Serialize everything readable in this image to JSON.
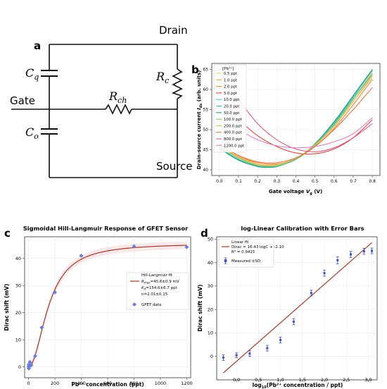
{
  "panel_a": {
    "letter": "a",
    "drain": "Drain",
    "gate": "Gate",
    "source": "Source",
    "cq": {
      "main": "C",
      "sub": "q"
    },
    "co": {
      "main": "C",
      "sub": "o"
    },
    "rc": {
      "main": "R",
      "sub": "c"
    },
    "rch": {
      "main": "R",
      "sub": "ch"
    }
  },
  "panel_b": {
    "letter": "b",
    "ylabel_main": "Drain-source current ",
    "ylabel_sym": "I",
    "ylabel_sub": "ds",
    "ylabel_unit": " (arb. units)",
    "xlabel_main": "Gate voltage ",
    "xlabel_sym": "V",
    "xlabel_sub": "g",
    "xlabel_unit": " (V)",
    "legend_title": "[Pb²⁺]",
    "x_ticks": [
      "0.0",
      "0.1",
      "0.2",
      "0.3",
      "0.4",
      "0.5",
      "0.6",
      "0.7",
      "0.8"
    ],
    "y_ticks": [
      "40",
      "45",
      "50",
      "55",
      "60",
      "65"
    ]
  },
  "panel_c": {
    "letter": "c",
    "title": "Sigmoidal Hill-Langmuir Response of GFET Sensor",
    "ylabel": "Dirac shift (mV)",
    "xlabel": "Pb²⁺ concentration (ppt)",
    "x_ticks": [
      "0",
      "200",
      "400",
      "600",
      "800",
      "1000",
      "1200"
    ],
    "y_ticks": [
      "0",
      "10",
      "20",
      "30",
      "40"
    ],
    "fit_label": "Hill-Langmuir fit",
    "fit_l1": "R",
    "fit_l1_sub": "max",
    "fit_l1_rest": "=45.6±0.9 mV",
    "fit_l2": "K",
    "fit_l2_sub": "d",
    "fit_l2_rest": "=154.6±6.7 ppt",
    "fit_l3": "n=2.01±0.15",
    "data_label": "GFET data"
  },
  "panel_d": {
    "letter": "d",
    "title": "log-Linear Calibration with Error Bars",
    "ylabel": "Dirac shift (mV)",
    "xlabel_pre": "log",
    "xlabel_sub": "10",
    "xlabel_post": "(Pb²⁺ concentration / ppt)",
    "x_ticks": [
      "0.0",
      "0.5",
      "1.0",
      "1.5",
      "2.0",
      "2.5",
      "3.0"
    ],
    "y_ticks": [
      "0",
      "10",
      "20",
      "30",
      "40",
      "50"
    ],
    "legend_fit": "Linear fit",
    "legend_eq": "Dirac = 16.43 logC + -2.10",
    "legend_r2": "R² = 0.9415",
    "legend_meas": "Measured ±SD"
  },
  "chart_data": [
    {
      "panel": "b",
      "type": "line",
      "xlabel": "Gate voltage Vg (V)",
      "ylabel": "Drain-source current Ids (arb. units)",
      "xlim": [
        -0.04,
        0.84
      ],
      "ylim": [
        38.6,
        66.5
      ],
      "legend_title": "[Pb²⁺]",
      "legend_placement": "top-left",
      "series": [
        {
          "name": "0.5 ppt",
          "color": "#f5c96b",
          "x": [
            0.0,
            0.1,
            0.2,
            0.25,
            0.3,
            0.4,
            0.5,
            0.6,
            0.7,
            0.8
          ],
          "y": [
            46.0,
            43.0,
            41.3,
            41.0,
            41.2,
            42.6,
            46.0,
            51.0,
            57.5,
            64.5
          ]
        },
        {
          "name": "1.0 ppt",
          "color": "#f0a93e",
          "x": [
            0.0,
            0.1,
            0.2,
            0.25,
            0.3,
            0.4,
            0.5,
            0.6,
            0.7,
            0.8
          ],
          "y": [
            46.2,
            43.2,
            41.5,
            41.2,
            41.4,
            42.8,
            46.1,
            50.8,
            57.0,
            63.5
          ]
        },
        {
          "name": "2.0 ppt",
          "color": "#e58a3a",
          "x": [
            0.0,
            0.1,
            0.2,
            0.3,
            0.4,
            0.5,
            0.6,
            0.7,
            0.8
          ],
          "y": [
            46.5,
            43.5,
            41.8,
            41.5,
            42.8,
            45.8,
            50.3,
            56.2,
            62.5
          ]
        },
        {
          "name": "5.0 ppt",
          "color": "#cf4a45",
          "x": [
            0.1,
            0.2,
            0.3,
            0.4,
            0.5,
            0.6,
            0.7,
            0.8
          ],
          "y": [
            52.5,
            48.5,
            45.8,
            44.2,
            44.0,
            45.2,
            48.0,
            52.5
          ]
        },
        {
          "name": "10.0 ppt",
          "color": "#48c6d6",
          "x": [
            0.0,
            0.1,
            0.2,
            0.25,
            0.3,
            0.4,
            0.5,
            0.6,
            0.7,
            0.8
          ],
          "y": [
            45.5,
            42.6,
            40.9,
            40.7,
            40.9,
            42.6,
            46.2,
            51.5,
            57.8,
            64.0
          ]
        },
        {
          "name": "20.0 ppt",
          "color": "#37b3b0",
          "x": [
            0.0,
            0.1,
            0.2,
            0.25,
            0.3,
            0.4,
            0.5,
            0.6,
            0.7,
            0.8
          ],
          "y": [
            45.3,
            42.4,
            40.8,
            40.6,
            40.8,
            42.6,
            46.4,
            51.8,
            58.2,
            64.8
          ]
        },
        {
          "name": "50.0 ppt",
          "color": "#2aa07e",
          "x": [
            0.0,
            0.1,
            0.2,
            0.25,
            0.3,
            0.4,
            0.5,
            0.6,
            0.7,
            0.8
          ],
          "y": [
            45.4,
            42.5,
            40.9,
            40.7,
            40.9,
            42.7,
            46.5,
            52.0,
            58.5,
            65.0
          ]
        },
        {
          "name": "100.0 ppt",
          "color": "#8cc06a",
          "x": [
            0.0,
            0.1,
            0.2,
            0.25,
            0.3,
            0.4,
            0.5,
            0.6,
            0.7,
            0.8
          ],
          "y": [
            45.8,
            42.9,
            41.1,
            40.9,
            41.0,
            42.6,
            46.1,
            51.2,
            57.6,
            63.8
          ]
        },
        {
          "name": "200.0 ppt",
          "color": "#c9c86a",
          "x": [
            0.0,
            0.1,
            0.2,
            0.25,
            0.3,
            0.4,
            0.5,
            0.6,
            0.7,
            0.8
          ],
          "y": [
            46.0,
            43.1,
            41.4,
            41.1,
            41.3,
            42.9,
            46.3,
            51.0,
            57.0,
            63.0
          ]
        },
        {
          "name": "400.0 ppt",
          "color": "#e1774a",
          "x": [
            0.0,
            0.1,
            0.2,
            0.3,
            0.4,
            0.5,
            0.6,
            0.7,
            0.8
          ],
          "y": [
            46.3,
            43.6,
            42.0,
            41.8,
            43.0,
            45.8,
            50.0,
            55.0,
            60.5
          ]
        },
        {
          "name": "800.0 ppt",
          "color": "#d85c83",
          "x": [
            0.1,
            0.2,
            0.3,
            0.4,
            0.5,
            0.6,
            0.7,
            0.8
          ],
          "y": [
            57.5,
            51.5,
            47.5,
            45.2,
            44.5,
            45.5,
            48.0,
            51.5
          ]
        },
        {
          "name": "1200.0 ppt",
          "color": "#e07fc3",
          "x": [
            0.1,
            0.2,
            0.3,
            0.4,
            0.5,
            0.6,
            0.7,
            0.8
          ],
          "y": [
            50.0,
            47.5,
            46.0,
            45.5,
            45.8,
            47.0,
            49.0,
            53.0
          ]
        }
      ]
    },
    {
      "panel": "c",
      "type": "scatter",
      "title": "Sigmoidal Hill-Langmuir Response of GFET Sensor",
      "xlabel": "Pb²⁺ concentration (ppt)",
      "ylabel": "Dirac shift (mV)",
      "xlim": [
        -30,
        1230
      ],
      "ylim": [
        -4,
        48
      ],
      "legend_placement": "bottom-right",
      "fit": {
        "name": "Hill-Langmuir fit",
        "Rmax": 45.6,
        "Kd": 154.6,
        "n": 2.01,
        "color": "#a03a2e"
      },
      "series": [
        {
          "name": "GFET data",
          "color": "#6b7fd6",
          "x": [
            0.5,
            1,
            2,
            5,
            10,
            20,
            50,
            100,
            200,
            400,
            800,
            1200
          ],
          "y": [
            0.0,
            0.8,
            -0.6,
            0.3,
            1.8,
            0.6,
            4.0,
            14.5,
            27.5,
            41.0,
            44.5,
            44.2
          ]
        }
      ]
    },
    {
      "panel": "d",
      "type": "scatter",
      "title": "log-Linear Calibration with Error Bars",
      "xlabel": "log10(Pb²⁺ concentration / ppt)",
      "ylabel": "Dirac shift (mV)",
      "xlim": [
        -0.45,
        3.2
      ],
      "ylim": [
        -10,
        51
      ],
      "legend_placement": "top-left",
      "fit": {
        "name": "Linear fit",
        "slope": 16.43,
        "intercept": -2.1,
        "r2": 0.9415,
        "x_range": [
          -0.3,
          3.08
        ],
        "color": "#a03a2e"
      },
      "series": [
        {
          "name": "Measured ±SD",
          "color": "#3f51b5",
          "x": [
            -0.3,
            0.0,
            0.3,
            0.7,
            1.0,
            1.3,
            1.7,
            2.0,
            2.3,
            2.6,
            2.9,
            3.08
          ],
          "y": [
            -0.5,
            0.5,
            1.2,
            3.5,
            7.0,
            14.8,
            27.0,
            35.5,
            41.0,
            43.5,
            44.8,
            45.0
          ],
          "sd": [
            1.2,
            1.0,
            1.2,
            1.2,
            1.2,
            1.3,
            1.2,
            1.3,
            1.5,
            1.3,
            1.3,
            1.2
          ]
        }
      ]
    }
  ]
}
